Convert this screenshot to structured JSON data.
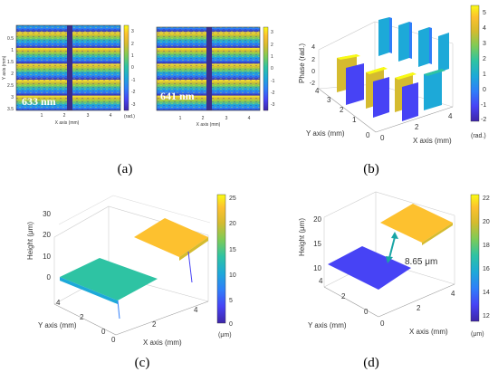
{
  "colors": {
    "cmap": [
      "#3e26a8",
      "#4743f5",
      "#2f7ef9",
      "#1da9d8",
      "#2ec3a3",
      "#7ecb57",
      "#d5bb2f",
      "#fdc12f",
      "#f9fb14"
    ],
    "frame": "#333333",
    "grid": "#dddddd",
    "gap": "#3c2d8a"
  },
  "panels": {
    "a": {
      "label": "(a)",
      "maps": [
        {
          "wavelength": "633 nm",
          "yticks": [
            "0.5",
            "1",
            "1.5",
            "2",
            "2.5",
            "3",
            "3.5"
          ],
          "xticks": [
            "1",
            "2",
            "3",
            "4"
          ],
          "xlabel": "X axis (mm)",
          "ylabel": "Y axis (mm)",
          "cb_ticks": [
            "3",
            "2",
            "1",
            "0",
            "-1",
            "-2",
            "-3"
          ],
          "cb_unit": "(rad.)"
        },
        {
          "wavelength": "641 nm",
          "xticks": [
            "1",
            "2",
            "3",
            "4"
          ],
          "xlabel": "X axis (mm)",
          "cb_ticks": [
            "3",
            "2",
            "1",
            "0",
            "-1",
            "-2",
            "-3"
          ]
        }
      ]
    },
    "b": {
      "label": "(b)",
      "zlabel": "Phase (rad.)",
      "ylabel": "Y axis (mm)",
      "xlabel": "X axis (mm)",
      "zticks": [
        "4",
        "2",
        "0",
        "-2"
      ],
      "yticks": [
        "4",
        "3",
        "2",
        "1",
        "0"
      ],
      "xticks": [
        "0",
        "2",
        "4"
      ],
      "cb_ticks": [
        "5",
        "4",
        "3",
        "2",
        "1",
        "0",
        "-1",
        "-2"
      ],
      "cb_unit": "(rad.)"
    },
    "c": {
      "label": "(c)",
      "zlabel": "Height (μm)",
      "ylabel": "Y axis (mm)",
      "xlabel": "X axis (mm)",
      "zticks": [
        "30",
        "20",
        "10",
        "0"
      ],
      "yticks": [
        "4",
        "2",
        "0"
      ],
      "xticks": [
        "0",
        "2",
        "4"
      ],
      "cb_ticks": [
        "25",
        "20",
        "15",
        "10",
        "5",
        "0"
      ],
      "cb_unit": "(μm)"
    },
    "d": {
      "label": "(d)",
      "zlabel": "Height (μm)",
      "ylabel": "Y axis (mm)",
      "xlabel": "X axis (mm)",
      "zticks": [
        "20",
        "15",
        "10"
      ],
      "yticks": [
        "4",
        "2",
        "0"
      ],
      "xticks": [
        "0",
        "2",
        "4"
      ],
      "cb_ticks": [
        "22",
        "20",
        "18",
        "16",
        "14",
        "12"
      ],
      "cb_unit": "(μm)",
      "annotation": "8.65 μm"
    }
  },
  "chart_data": [
    {
      "type": "heatmap",
      "panel": "a",
      "wavelength_nm": 633,
      "quantity": "wrapped phase (rad.)",
      "xlim": [
        0,
        4.5
      ],
      "ylim": [
        0,
        3.5
      ],
      "clim": [
        -3,
        3
      ]
    },
    {
      "type": "heatmap",
      "panel": "a",
      "wavelength_nm": 641,
      "quantity": "wrapped phase (rad.)",
      "xlim": [
        0,
        4.5
      ],
      "ylim": [
        0,
        3.5
      ],
      "clim": [
        -3,
        3
      ]
    },
    {
      "type": "surface",
      "panel": "b",
      "quantity": "phase (rad.)",
      "clim": [
        -2,
        5.5
      ],
      "xlim": [
        0,
        4.5
      ],
      "ylim": [
        0,
        4
      ],
      "zlim": [
        -3,
        5
      ]
    },
    {
      "type": "surface",
      "panel": "c",
      "quantity": "height (μm)",
      "clim": [
        0,
        25
      ],
      "zlim": [
        0,
        30
      ],
      "planes": [
        {
          "level": 12
        },
        {
          "level": 22
        }
      ]
    },
    {
      "type": "surface",
      "panel": "d",
      "quantity": "height (μm)",
      "clim": [
        11.5,
        22
      ],
      "zlim": [
        8,
        22
      ],
      "planes": [
        {
          "level": 12
        },
        {
          "level": 20.65
        }
      ],
      "step_height": 8.65
    }
  ]
}
